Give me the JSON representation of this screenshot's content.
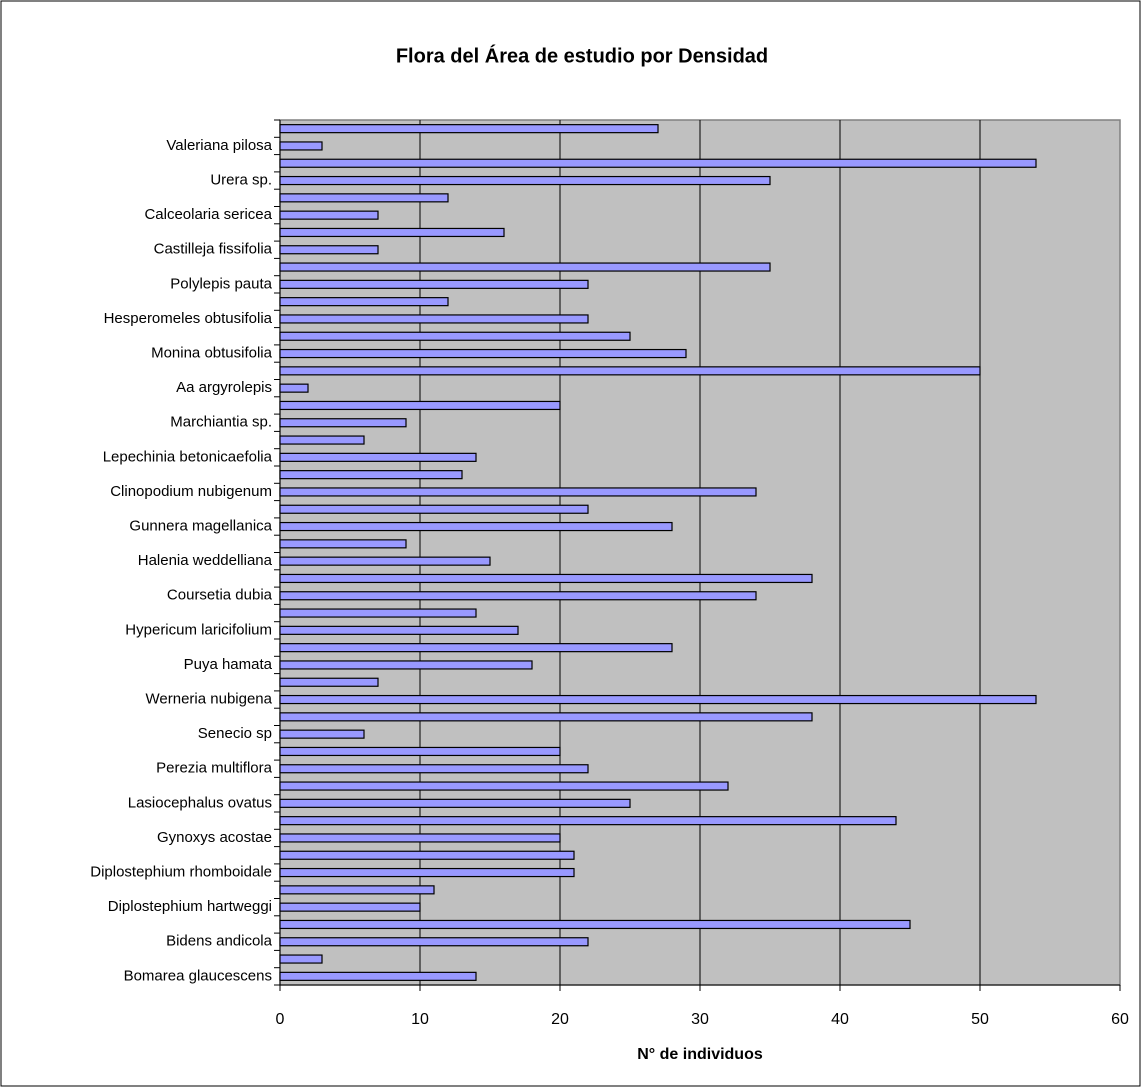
{
  "chart_data": {
    "type": "bar",
    "orientation": "horizontal",
    "title": "Flora del Área de estudio por Densidad",
    "x_label": "N° de individuos",
    "categories": [
      null,
      "Valeriana pilosa",
      null,
      "Urera sp.",
      null,
      "Calceolaria sericea",
      null,
      "Castilleja fissifolia",
      null,
      "Polylepis pauta",
      null,
      "Hesperomeles obtusifolia",
      null,
      "Monina obtusifolia",
      null,
      "Aa argyrolepis",
      null,
      "Marchiantia sp.",
      null,
      "Lepechinia betonicaefolia",
      null,
      "Clinopodium nubigenum",
      null,
      "Gunnera magellanica",
      null,
      "Halenia weddelliana",
      null,
      "Coursetia dubia",
      null,
      "Hypericum laricifolium",
      null,
      "Puya hamata",
      null,
      "Werneria nubigena",
      null,
      "Senecio sp",
      null,
      "Perezia multiflora",
      null,
      "Lasiocephalus ovatus",
      null,
      "Gynoxys acostae",
      null,
      "Diplostephium rhomboidale",
      null,
      "Diplostephium hartweggi",
      null,
      "Bidens andicola",
      null,
      "Bomarea glaucescens"
    ],
    "values": [
      27,
      3,
      54,
      35,
      12,
      7,
      16,
      7,
      35,
      22,
      12,
      22,
      25,
      29,
      50,
      2,
      20,
      9,
      6,
      14,
      13,
      34,
      22,
      28,
      9,
      15,
      38,
      34,
      14,
      17,
      28,
      18,
      7,
      54,
      38,
      6,
      20,
      22,
      32,
      25,
      44,
      20,
      21,
      21,
      11,
      10,
      45,
      22,
      3,
      14
    ],
    "color": "#9999ff",
    "xlim": [
      0,
      60
    ],
    "xticks": [
      0,
      10,
      20,
      30,
      40,
      50,
      60
    ],
    "grid": true
  }
}
